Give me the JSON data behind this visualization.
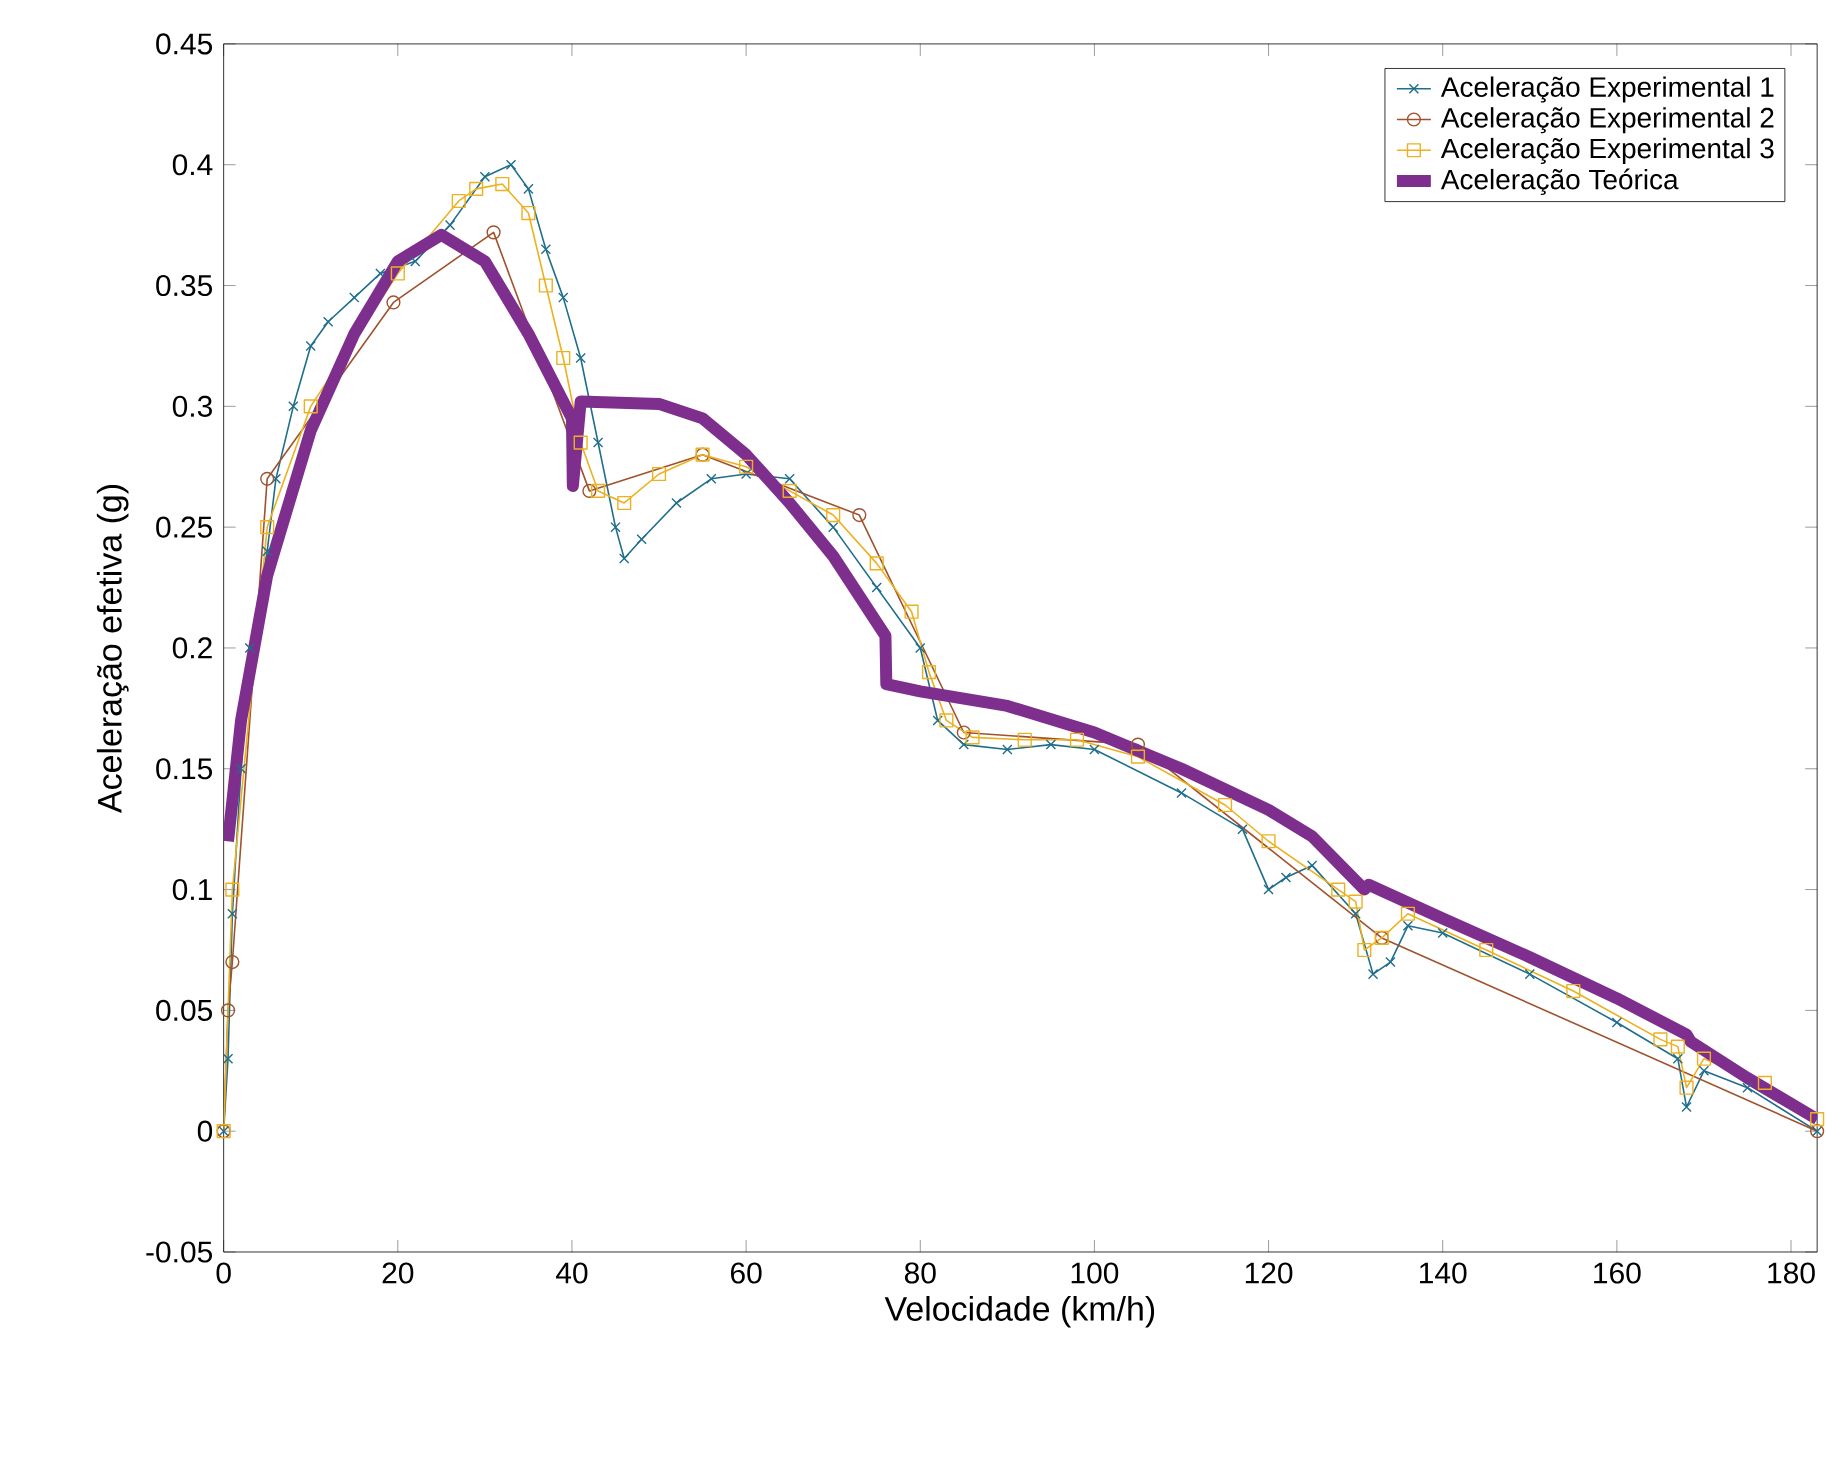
{
  "chart_data": {
    "type": "line",
    "xlabel": "Velocidade (km/h)",
    "ylabel": "Aceleração efetiva (g)",
    "xlim": [
      0,
      183
    ],
    "ylim": [
      -0.05,
      0.45
    ],
    "xticks": [
      0,
      20,
      40,
      60,
      80,
      100,
      120,
      140,
      160,
      180
    ],
    "yticks": [
      -0.05,
      0,
      0.05,
      0.1,
      0.15,
      0.2,
      0.25,
      0.3,
      0.35,
      0.4,
      0.45
    ],
    "legend": "top right",
    "series": [
      {
        "name": "Aceleração Experimental 1",
        "color": "#1f6e8c",
        "marker": "cross",
        "x": [
          0,
          0.5,
          1,
          2,
          3,
          5,
          6,
          8,
          10,
          12,
          15,
          18,
          22,
          26,
          30,
          33,
          35,
          37,
          39,
          41,
          43,
          45,
          46,
          48,
          52,
          56,
          60,
          65,
          70,
          75,
          80,
          82,
          85,
          90,
          95,
          100,
          110,
          117,
          120,
          122,
          125,
          130,
          132,
          134,
          136,
          140,
          150,
          160,
          167,
          168,
          170,
          175,
          183
        ],
        "values": [
          0.0,
          0.03,
          0.09,
          0.15,
          0.2,
          0.24,
          0.27,
          0.3,
          0.325,
          0.335,
          0.345,
          0.355,
          0.36,
          0.375,
          0.395,
          0.4,
          0.39,
          0.365,
          0.345,
          0.32,
          0.285,
          0.25,
          0.237,
          0.245,
          0.26,
          0.27,
          0.272,
          0.27,
          0.25,
          0.225,
          0.2,
          0.17,
          0.16,
          0.158,
          0.16,
          0.158,
          0.14,
          0.125,
          0.1,
          0.105,
          0.11,
          0.09,
          0.065,
          0.07,
          0.085,
          0.082,
          0.065,
          0.045,
          0.03,
          0.01,
          0.025,
          0.018,
          0.0
        ]
      },
      {
        "name": "Aceleração Experimental 2",
        "color": "#a0522d",
        "marker": "circle",
        "x": [
          0,
          0.5,
          1,
          5,
          19.5,
          31,
          42,
          55,
          73,
          85,
          105,
          133,
          183
        ],
        "values": [
          0.0,
          0.05,
          0.07,
          0.27,
          0.343,
          0.372,
          0.265,
          0.28,
          0.255,
          0.165,
          0.16,
          0.08,
          0.0
        ]
      },
      {
        "name": "Aceleração Experimental 3",
        "color": "#edb120",
        "marker": "square",
        "x": [
          0,
          1,
          5,
          10,
          20,
          27,
          29,
          32,
          35,
          37,
          39,
          41,
          43,
          46,
          50,
          55,
          60,
          65,
          70,
          75,
          79,
          81,
          83,
          86,
          92,
          98,
          105,
          115,
          120,
          128,
          130,
          131,
          133,
          136,
          145,
          155,
          165,
          167,
          168,
          170,
          177,
          183
        ],
        "values": [
          0.0,
          0.1,
          0.25,
          0.3,
          0.355,
          0.385,
          0.39,
          0.392,
          0.38,
          0.35,
          0.32,
          0.285,
          0.265,
          0.26,
          0.272,
          0.28,
          0.275,
          0.265,
          0.255,
          0.235,
          0.215,
          0.19,
          0.17,
          0.163,
          0.162,
          0.162,
          0.155,
          0.135,
          0.12,
          0.1,
          0.095,
          0.075,
          0.08,
          0.09,
          0.075,
          0.058,
          0.038,
          0.035,
          0.018,
          0.03,
          0.02,
          0.005
        ]
      },
      {
        "name": "Aceleração Teórica",
        "color": "#7e2f8e",
        "marker": "none",
        "x": [
          0.5,
          2,
          5,
          10,
          15,
          20,
          25,
          30,
          35,
          40,
          40.1,
          41,
          50,
          55,
          60,
          65,
          70,
          76,
          76.1,
          80,
          90,
          100,
          110,
          120,
          125,
          131,
          131.5,
          140,
          150,
          160,
          168,
          168.5,
          175,
          183
        ],
        "values": [
          0.12,
          0.17,
          0.23,
          0.29,
          0.33,
          0.36,
          0.371,
          0.36,
          0.33,
          0.295,
          0.267,
          0.302,
          0.301,
          0.295,
          0.28,
          0.26,
          0.238,
          0.205,
          0.185,
          0.182,
          0.176,
          0.165,
          0.15,
          0.133,
          0.122,
          0.1,
          0.102,
          0.088,
          0.072,
          0.055,
          0.04,
          0.037,
          0.022,
          0.005
        ]
      }
    ]
  }
}
